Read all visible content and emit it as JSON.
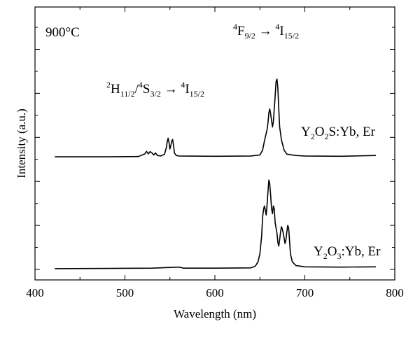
{
  "chart_data": {
    "type": "line",
    "xlabel": "Wavelength (nm)",
    "ylabel": "Intensity (a.u.)",
    "xlim": [
      400,
      800
    ],
    "xticks": [
      400,
      500,
      600,
      700,
      800
    ],
    "ylim": [
      0,
      100
    ],
    "y_tick_labels_shown": false,
    "grid": false,
    "legend": "none",
    "annotations": {
      "temperature": "900°C",
      "transition_green": {
        "parts": [
          "2",
          "H",
          "11/2",
          "/",
          "4",
          "S",
          "3/2",
          " → ",
          "4",
          "I",
          "15/2"
        ]
      },
      "transition_red": {
        "parts": [
          "4",
          "F",
          "9/2",
          " → ",
          "4",
          "I",
          "15/2"
        ]
      },
      "label_top": {
        "parts": [
          "Y",
          "2",
          "O",
          "2",
          "S:Yb, Er"
        ]
      },
      "label_bottom": {
        "parts": [
          "Y",
          "2",
          "O",
          "3",
          ":Yb, Er"
        ]
      }
    },
    "series": [
      {
        "points": [
          [
            422,
            43.5
          ],
          [
            480,
            43.5
          ],
          [
            515,
            43.6
          ],
          [
            522,
            44.6
          ],
          [
            524,
            45.6
          ],
          [
            526,
            44.6
          ],
          [
            528,
            45.5
          ],
          [
            530,
            45.0
          ],
          [
            532,
            44.2
          ],
          [
            534,
            45.0
          ],
          [
            536,
            44.0
          ],
          [
            540,
            43.8
          ],
          [
            544,
            44.5
          ],
          [
            546,
            47.0
          ],
          [
            547,
            49.3
          ],
          [
            548,
            50.7
          ],
          [
            549,
            49.0
          ],
          [
            550,
            46.5
          ],
          [
            551,
            47.8
          ],
          [
            552,
            49.5
          ],
          [
            553,
            50.2
          ],
          [
            554,
            48.0
          ],
          [
            555,
            45.0
          ],
          [
            557,
            44.0
          ],
          [
            560,
            43.8
          ],
          [
            600,
            43.7
          ],
          [
            640,
            43.8
          ],
          [
            650,
            44.2
          ],
          [
            653,
            46.0
          ],
          [
            655,
            49.5
          ],
          [
            657,
            52.5
          ],
          [
            658,
            54.0
          ],
          [
            659,
            56.5
          ],
          [
            660,
            60.5
          ],
          [
            661,
            62.0
          ],
          [
            662,
            60.0
          ],
          [
            663,
            57.5
          ],
          [
            664,
            55.0
          ],
          [
            665,
            57.0
          ],
          [
            666,
            62.0
          ],
          [
            667,
            67.0
          ],
          [
            668,
            72.5
          ],
          [
            669,
            73.5
          ],
          [
            670,
            70.0
          ],
          [
            671,
            62.0
          ],
          [
            672,
            55.0
          ],
          [
            674,
            50.0
          ],
          [
            677,
            46.0
          ],
          [
            680,
            44.5
          ],
          [
            690,
            44.0
          ],
          [
            700,
            43.8
          ],
          [
            740,
            43.7
          ],
          [
            779,
            44.0
          ]
        ]
      },
      {
        "points": [
          [
            422,
            0.3
          ],
          [
            480,
            0.4
          ],
          [
            530,
            0.5
          ],
          [
            560,
            0.9
          ],
          [
            565,
            0.5
          ],
          [
            600,
            0.5
          ],
          [
            640,
            0.6
          ],
          [
            645,
            1.3
          ],
          [
            648,
            3.0
          ],
          [
            650,
            6.0
          ],
          [
            652,
            13.0
          ],
          [
            653,
            20.0
          ],
          [
            654,
            23.0
          ],
          [
            655,
            24.5
          ],
          [
            656,
            23.0
          ],
          [
            657,
            21.0
          ],
          [
            658,
            25.0
          ],
          [
            659,
            30.0
          ],
          [
            660,
            34.5
          ],
          [
            661,
            33.0
          ],
          [
            662,
            28.5
          ],
          [
            663,
            23.5
          ],
          [
            664,
            21.5
          ],
          [
            665,
            24.5
          ],
          [
            666,
            23.5
          ],
          [
            667,
            18.0
          ],
          [
            669,
            14.0
          ],
          [
            670,
            10.5
          ],
          [
            671,
            9.0
          ],
          [
            672,
            11.5
          ],
          [
            673,
            14.5
          ],
          [
            674,
            16.5
          ],
          [
            675,
            15.5
          ],
          [
            676,
            14.0
          ],
          [
            677,
            12.0
          ],
          [
            678,
            10.0
          ],
          [
            679,
            11.5
          ],
          [
            680,
            14.5
          ],
          [
            681,
            17.0
          ],
          [
            682,
            16.0
          ],
          [
            683,
            11.0
          ],
          [
            684,
            6.0
          ],
          [
            686,
            3.0
          ],
          [
            690,
            1.5
          ],
          [
            700,
            1.0
          ],
          [
            740,
            0.9
          ],
          [
            779,
            1.0
          ]
        ]
      }
    ]
  }
}
